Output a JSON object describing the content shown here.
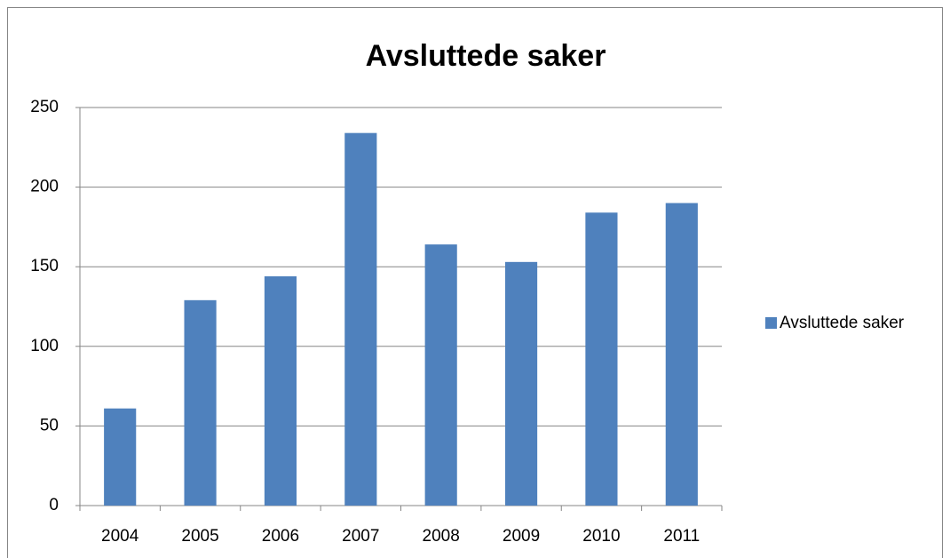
{
  "chart_data": {
    "type": "bar",
    "title": "Avsluttede saker",
    "categories": [
      "2004",
      "2005",
      "2006",
      "2007",
      "2008",
      "2009",
      "2010",
      "2011"
    ],
    "series": [
      {
        "name": "Avsluttede saker",
        "color": "#4f81bd",
        "values": [
          61,
          129,
          144,
          234,
          164,
          153,
          184,
          190
        ]
      }
    ],
    "ylim": [
      0,
      250
    ],
    "yticks": [
      0,
      50,
      100,
      150,
      200,
      250
    ],
    "grid": true,
    "legend": "right"
  }
}
